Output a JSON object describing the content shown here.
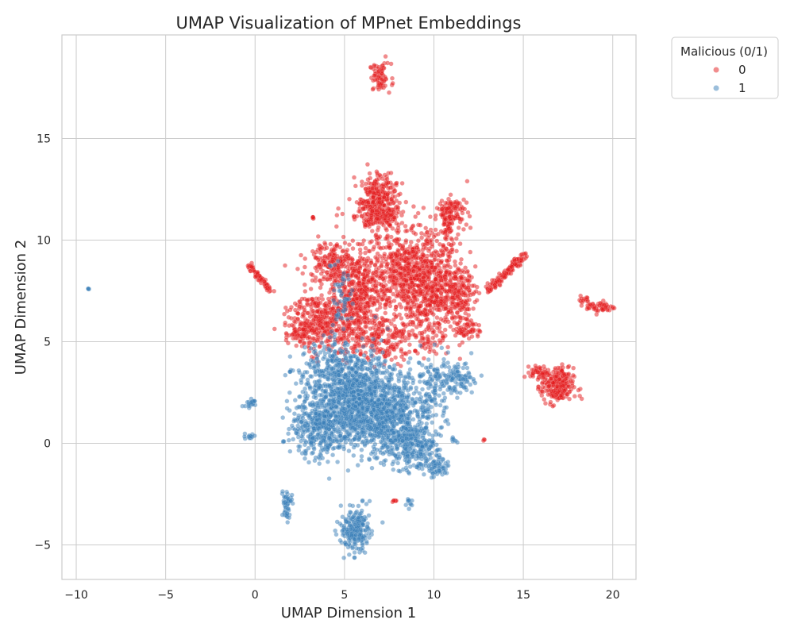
{
  "chart_data": {
    "type": "scatter",
    "title": "UMAP Visualization of MPnet Embeddings",
    "xlabel": "UMAP Dimension 1",
    "ylabel": "UMAP Dimension 2",
    "xlim": [
      -10.8,
      21.3
    ],
    "ylim": [
      -6.7,
      20.1
    ],
    "x_ticks": [
      -10,
      -5,
      0,
      5,
      10,
      15,
      20
    ],
    "y_ticks": [
      -5,
      0,
      5,
      10,
      15
    ],
    "x_tick_labels": [
      "−10",
      "−5",
      "0",
      "5",
      "10",
      "15",
      "20"
    ],
    "y_tick_labels": [
      "−5",
      "0",
      "5",
      "10",
      "15"
    ],
    "grid": true,
    "legend": {
      "title": "Malicious (0/1)",
      "placement": "outside-upper-right",
      "entries": [
        {
          "label": "0",
          "color": "#e41a1c"
        },
        {
          "label": "1",
          "color": "#377eb8"
        }
      ]
    },
    "series": [
      {
        "name": "0",
        "color": "#e41a1c",
        "clusters": [
          {
            "cx": 7.0,
            "cy": 18.0,
            "sx": 0.3,
            "sy": 0.35,
            "n": 70
          },
          {
            "cx": 6.9,
            "cy": 12.1,
            "sx": 0.5,
            "sy": 0.6,
            "n": 260
          },
          {
            "cx": 6.8,
            "cy": 11.2,
            "sx": 0.9,
            "sy": 0.4,
            "n": 140
          },
          {
            "cx": 8.3,
            "cy": 8.6,
            "sx": 1.0,
            "sy": 1.0,
            "n": 480
          },
          {
            "cx": 9.8,
            "cy": 7.5,
            "sx": 0.9,
            "sy": 1.1,
            "n": 460
          },
          {
            "cx": 5.8,
            "cy": 7.4,
            "sx": 0.7,
            "sy": 1.0,
            "n": 420
          },
          {
            "cx": 4.2,
            "cy": 9.0,
            "sx": 0.6,
            "sy": 0.5,
            "n": 160
          },
          {
            "cx": 3.8,
            "cy": 6.2,
            "sx": 0.9,
            "sy": 0.8,
            "n": 320
          },
          {
            "cx": 2.6,
            "cy": 5.5,
            "sx": 0.5,
            "sy": 0.35,
            "n": 80
          },
          {
            "cx": 11.0,
            "cy": 11.4,
            "sx": 0.45,
            "sy": 0.35,
            "n": 110
          },
          {
            "cx": 10.7,
            "cy": 10.4,
            "sx": 0.25,
            "sy": 0.6,
            "n": 60
          },
          {
            "cx": 11.3,
            "cy": 7.4,
            "sx": 0.5,
            "sy": 0.6,
            "n": 180
          },
          {
            "cx": 11.9,
            "cy": 5.6,
            "sx": 0.35,
            "sy": 0.25,
            "n": 60
          },
          {
            "cx": 7.2,
            "cy": 5.2,
            "sx": 1.8,
            "sy": 0.6,
            "n": 320
          },
          {
            "cx": 16.9,
            "cy": 2.8,
            "sx": 0.45,
            "sy": 0.45,
            "n": 230
          },
          {
            "cx": 15.9,
            "cy": 3.5,
            "sx": 0.25,
            "sy": 0.15,
            "n": 50
          },
          {
            "cx": 19.3,
            "cy": 6.7,
            "sx": 0.4,
            "sy": 0.15,
            "n": 50
          },
          {
            "cx": 18.4,
            "cy": 7.1,
            "sx": 0.25,
            "sy": 0.15,
            "n": 15
          },
          {
            "cx": 7.8,
            "cy": -2.8,
            "sx": 0.1,
            "sy": 0.05,
            "n": 6
          },
          {
            "cx": 12.8,
            "cy": 0.15,
            "sx": 0.04,
            "sy": 0.04,
            "n": 3
          }
        ],
        "strands": [
          {
            "x0": -0.4,
            "y0": 8.8,
            "x1": 0.9,
            "y1": 7.5,
            "n": 70,
            "w": 0.08
          },
          {
            "x0": 13.0,
            "y0": 7.5,
            "x1": 15.1,
            "y1": 9.3,
            "n": 130,
            "w": 0.1
          },
          {
            "x0": 3.1,
            "y0": 11.15,
            "x1": 3.3,
            "y1": 11.1,
            "n": 5,
            "w": 0.05
          }
        ]
      },
      {
        "name": "1",
        "color": "#377eb8",
        "clusters": [
          {
            "cx": 5.6,
            "cy": 2.0,
            "sx": 1.3,
            "sy": 1.1,
            "n": 800
          },
          {
            "cx": 7.3,
            "cy": 1.5,
            "sx": 1.1,
            "sy": 1.0,
            "n": 600
          },
          {
            "cx": 3.6,
            "cy": 0.7,
            "sx": 0.8,
            "sy": 0.7,
            "n": 320
          },
          {
            "cx": 4.6,
            "cy": 3.4,
            "sx": 1.0,
            "sy": 0.8,
            "n": 320
          },
          {
            "cx": 8.8,
            "cy": 0.0,
            "sx": 0.8,
            "sy": 0.7,
            "n": 320
          },
          {
            "cx": 10.0,
            "cy": 2.8,
            "sx": 0.5,
            "sy": 0.8,
            "n": 120
          },
          {
            "cx": 11.4,
            "cy": 3.2,
            "sx": 0.5,
            "sy": 0.5,
            "n": 90
          },
          {
            "cx": 5.6,
            "cy": -4.3,
            "sx": 0.4,
            "sy": 0.5,
            "n": 220
          },
          {
            "cx": 1.8,
            "cy": -2.9,
            "sx": 0.15,
            "sy": 0.35,
            "n": 50
          },
          {
            "cx": 10.2,
            "cy": -1.2,
            "sx": 0.4,
            "sy": 0.25,
            "n": 50
          },
          {
            "cx": 8.6,
            "cy": -2.9,
            "sx": 0.1,
            "sy": 0.15,
            "n": 10
          },
          {
            "cx": 11.1,
            "cy": 0.2,
            "sx": 0.08,
            "sy": 0.05,
            "n": 6
          },
          {
            "cx": -9.3,
            "cy": 7.6,
            "sx": 0.03,
            "sy": 0.03,
            "n": 4
          },
          {
            "cx": -0.4,
            "cy": 0.35,
            "sx": 0.2,
            "sy": 0.05,
            "n": 14
          },
          {
            "cx": -0.2,
            "cy": 2.0,
            "sx": 0.15,
            "sy": 0.1,
            "n": 12
          },
          {
            "cx": 2.0,
            "cy": 3.55,
            "sx": 0.05,
            "sy": 0.05,
            "n": 5
          },
          {
            "cx": 4.8,
            "cy": 7.2,
            "sx": 0.3,
            "sy": 0.8,
            "n": 50
          }
        ],
        "strands": [
          {
            "x0": -0.5,
            "y0": 1.8,
            "x1": 0.0,
            "y1": 2.1,
            "n": 10,
            "w": 0.05
          }
        ]
      }
    ]
  }
}
